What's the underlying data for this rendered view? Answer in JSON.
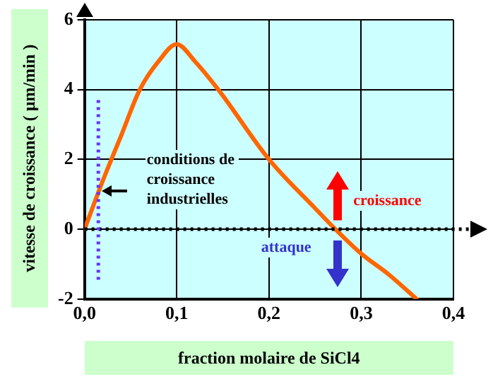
{
  "chart_data": {
    "type": "line",
    "xlabel": "fraction molaire de SiCl4",
    "ylabel": "vitesse de croissance ( µm/min )",
    "x": [
      0,
      0.02,
      0.04,
      0.06,
      0.08,
      0.1,
      0.12,
      0.145,
      0.2,
      0.25,
      0.272,
      0.3,
      0.33,
      0.36
    ],
    "series": [
      {
        "color": "#ff6600",
        "values": [
          0,
          1.4,
          2.7,
          4.0,
          4.8,
          5.3,
          4.8,
          4.0,
          2.0,
          0.6,
          0,
          -0.7,
          -1.3,
          -2.0
        ]
      }
    ],
    "xlim": [
      0,
      0.4
    ],
    "ylim": [
      -2,
      6
    ],
    "xticks": [
      {
        "value": 0,
        "label": "0,0"
      },
      {
        "value": 0.1,
        "label": "0,1"
      },
      {
        "value": 0.2,
        "label": "0,2"
      },
      {
        "value": 0.3,
        "label": "0,3"
      },
      {
        "value": 0.4,
        "label": "0,4"
      }
    ],
    "yticks": [
      -2,
      0,
      2,
      4,
      6
    ],
    "grid": true,
    "marker": "none",
    "line_style": "solid",
    "ref_lines": [
      {
        "axis": "y",
        "value": 0,
        "color": "#000000",
        "line_style": "dotted"
      },
      {
        "axis": "x",
        "value": 0.015,
        "color": "#6633ff",
        "line_style": "dotted"
      }
    ],
    "annotations": [
      "conditions de croissance industrielles",
      "croissance",
      "attaque"
    ]
  }
}
